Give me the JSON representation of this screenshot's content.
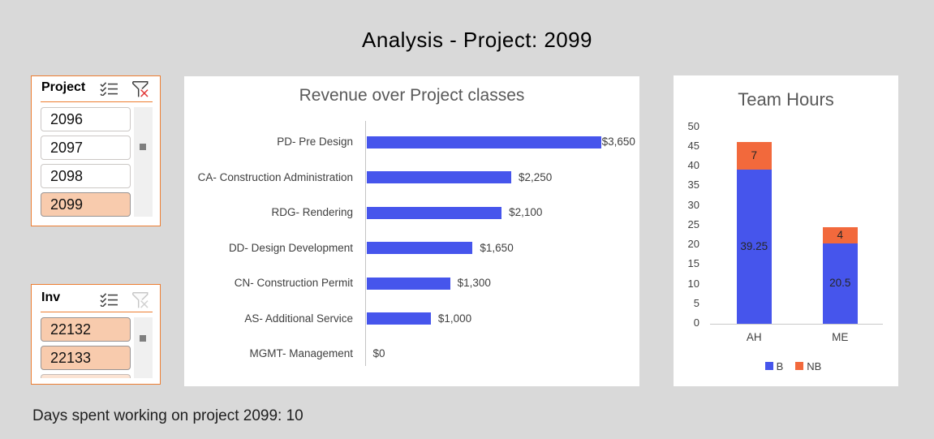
{
  "page": {
    "title": "Analysis - Project: 2099",
    "footer": "Days spent working on project 2099: 10"
  },
  "colors": {
    "background": "#d9d9d9",
    "accent_orange_border": "#ed7d31",
    "selected_item_fill": "#f8cbad",
    "bar_blue": "#4655ec",
    "bar_orange": "#f2693c",
    "title_gray": "#595959"
  },
  "slicers": {
    "project": {
      "title": "Project",
      "multi_select_icon": "multi-select-icon",
      "clear_filter_icon": "clear-filter-icon",
      "clear_filter_enabled": true,
      "items": [
        {
          "label": "2096",
          "selected": false
        },
        {
          "label": "2097",
          "selected": false
        },
        {
          "label": "2098",
          "selected": false
        },
        {
          "label": "2099",
          "selected": true
        }
      ]
    },
    "inv": {
      "title": "Inv",
      "multi_select_icon": "multi-select-icon",
      "clear_filter_icon": "clear-filter-icon",
      "clear_filter_enabled": false,
      "items": [
        {
          "label": "22132",
          "selected": true
        },
        {
          "label": "22133",
          "selected": true
        },
        {
          "label": "",
          "selected": true,
          "partial": true
        }
      ]
    }
  },
  "chart_data": [
    {
      "type": "bar",
      "orientation": "horizontal",
      "title": "Revenue over Project classes",
      "categories": [
        "PD- Pre Design",
        "CA- Construction Administration",
        "RDG- Rendering",
        "DD- Design Development",
        "CN- Construction Permit",
        "AS- Additional Service",
        "MGMT- Management"
      ],
      "values": [
        3650,
        2250,
        2100,
        1650,
        1300,
        1000,
        0
      ],
      "labels": [
        "$3,650",
        "$2,250",
        "$2,100",
        "$1,650",
        "$1,300",
        "$1,000",
        "$0"
      ],
      "bar_color": "#4655ec",
      "xlim": [
        0,
        3650
      ],
      "gridlines": false,
      "legend": "none"
    },
    {
      "type": "stacked-column",
      "title": "Team Hours",
      "categories": [
        "AH",
        "ME"
      ],
      "series": [
        {
          "name": "B",
          "color": "#4655ec",
          "values": [
            39.25,
            20.5
          ],
          "labels": [
            "39.25",
            "20.5"
          ]
        },
        {
          "name": "NB",
          "color": "#f2693c",
          "values": [
            7,
            4
          ],
          "labels": [
            "7",
            "4"
          ]
        }
      ],
      "ylim": [
        0,
        50
      ],
      "ytick_step": 5,
      "yticks": [
        "0",
        "5",
        "10",
        "15",
        "20",
        "25",
        "30",
        "35",
        "40",
        "45",
        "50"
      ],
      "gridlines": false,
      "legend_position": "bottom"
    }
  ]
}
